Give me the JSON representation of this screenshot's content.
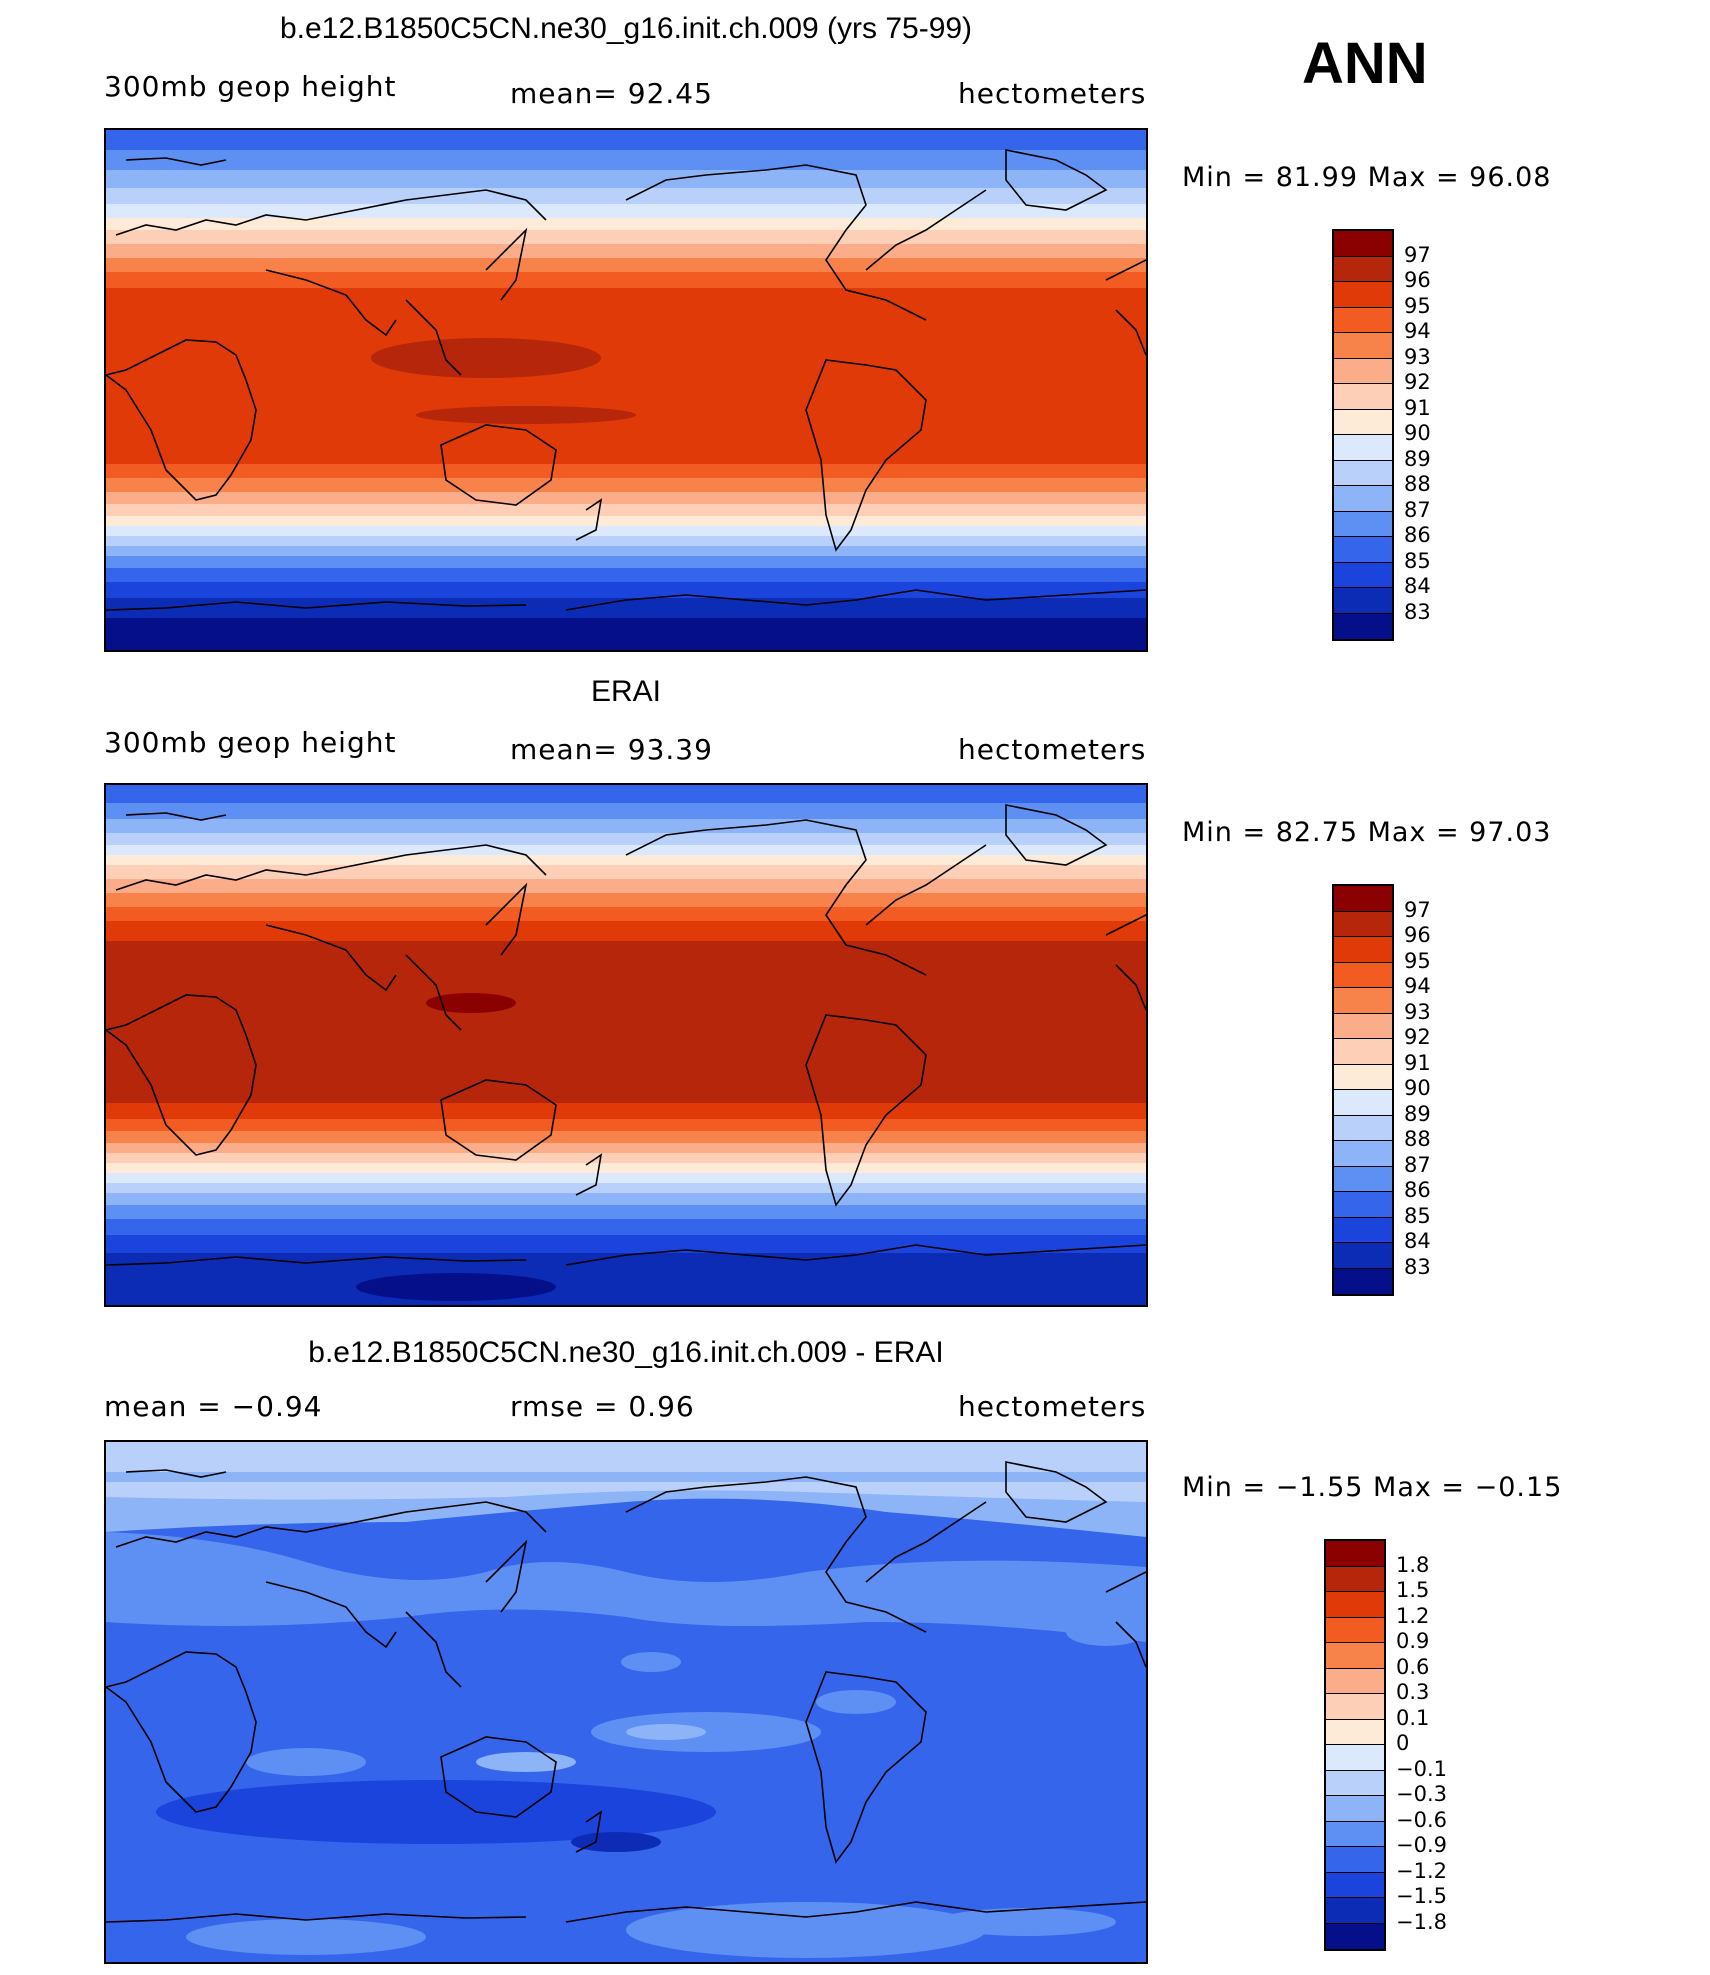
{
  "season": "ANN",
  "panels": [
    {
      "title": "b.e12.B1850C5CN.ne30_g16.init.ch.009 (yrs 75-99)",
      "left": "300mb  geop  height",
      "center": "mean=   92.45",
      "right": "hectometers",
      "minmax": "Min  =   81.99  Max  =   96.08",
      "colorbar_labels": [
        "97",
        "96",
        "95",
        "94",
        "93",
        "92",
        "91",
        "90",
        "89",
        "88",
        "87",
        "86",
        "85",
        "84",
        "83"
      ],
      "colorbar_colors": [
        "#8b0000",
        "#b5260a",
        "#e03a08",
        "#f25c22",
        "#f8834a",
        "#fbac88",
        "#fdcfb6",
        "#fdebd8",
        "#dce8fb",
        "#b9d1fa",
        "#8cb4f7",
        "#5e8ff3",
        "#3465eb",
        "#1a44db",
        "#0c2cb5",
        "#050f8a"
      ],
      "map_mean": 92.45
    },
    {
      "title": "ERAI",
      "left": "300mb  geop  height",
      "center": "mean=   93.39",
      "right": "hectometers",
      "minmax": "Min  =   82.75  Max  =   97.03",
      "colorbar_labels": [
        "97",
        "96",
        "95",
        "94",
        "93",
        "92",
        "91",
        "90",
        "89",
        "88",
        "87",
        "86",
        "85",
        "84",
        "83"
      ],
      "colorbar_colors": [
        "#8b0000",
        "#b5260a",
        "#e03a08",
        "#f25c22",
        "#f8834a",
        "#fbac88",
        "#fdcfb6",
        "#fdebd8",
        "#dce8fb",
        "#b9d1fa",
        "#8cb4f7",
        "#5e8ff3",
        "#3465eb",
        "#1a44db",
        "#0c2cb5",
        "#050f8a"
      ],
      "map_mean": 93.39
    },
    {
      "title": "b.e12.B1850C5CN.ne30_g16.init.ch.009 - ERAI",
      "left": "mean  =    −0.94",
      "center": "rmse  =     0.96",
      "right": "hectometers",
      "minmax": "Min  =   −1.55  Max  =   −0.15",
      "colorbar_labels": [
        "1.8",
        "1.5",
        "1.2",
        "0.9",
        "0.6",
        "0.3",
        "0.1",
        "0",
        "−0.1",
        "−0.3",
        "−0.6",
        "−0.9",
        "−1.2",
        "−1.5",
        "−1.8"
      ],
      "colorbar_colors": [
        "#8b0000",
        "#b5260a",
        "#e03a08",
        "#f25c22",
        "#f8834a",
        "#fbac88",
        "#fdcfb6",
        "#fdebd8",
        "#dce8fb",
        "#b9d1fa",
        "#8cb4f7",
        "#5e8ff3",
        "#3465eb",
        "#1a44db",
        "#0c2cb5",
        "#050f8a"
      ],
      "map_mean": -0.94
    }
  ]
}
